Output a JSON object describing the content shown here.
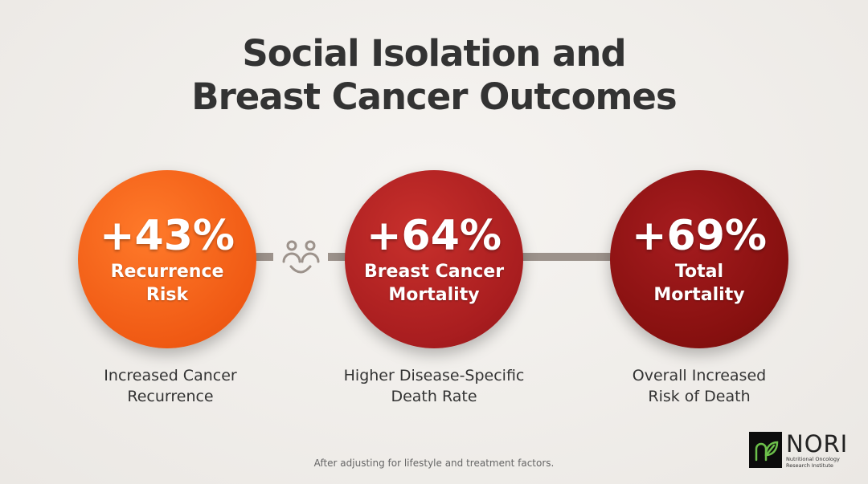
{
  "title": {
    "line1": "Social Isolation and",
    "line2": "Breast Cancer Outcomes"
  },
  "stats": [
    {
      "value": "+43%",
      "label1": "Recurrence",
      "label2": "Risk",
      "desc1": "Increased Cancer",
      "desc2": "Recurrence",
      "color": "#f05a14"
    },
    {
      "value": "+64%",
      "label1": "Breast Cancer",
      "label2": "Mortality",
      "desc1": "Higher Disease-Specific",
      "desc2": "Death Rate",
      "color": "#a81d1f"
    },
    {
      "value": "+69%",
      "label1": "Total",
      "label2": "Mortality",
      "desc1": "Overall Increased",
      "desc2": "Risk of Death",
      "color": "#86100f"
    }
  ],
  "connector_icon": "people-smile-icon",
  "footer": "After adjusting for lifestyle and treatment factors.",
  "logo": {
    "name": "NORI",
    "sub1": "Nutritional Oncology",
    "sub2": "Research Institute"
  }
}
